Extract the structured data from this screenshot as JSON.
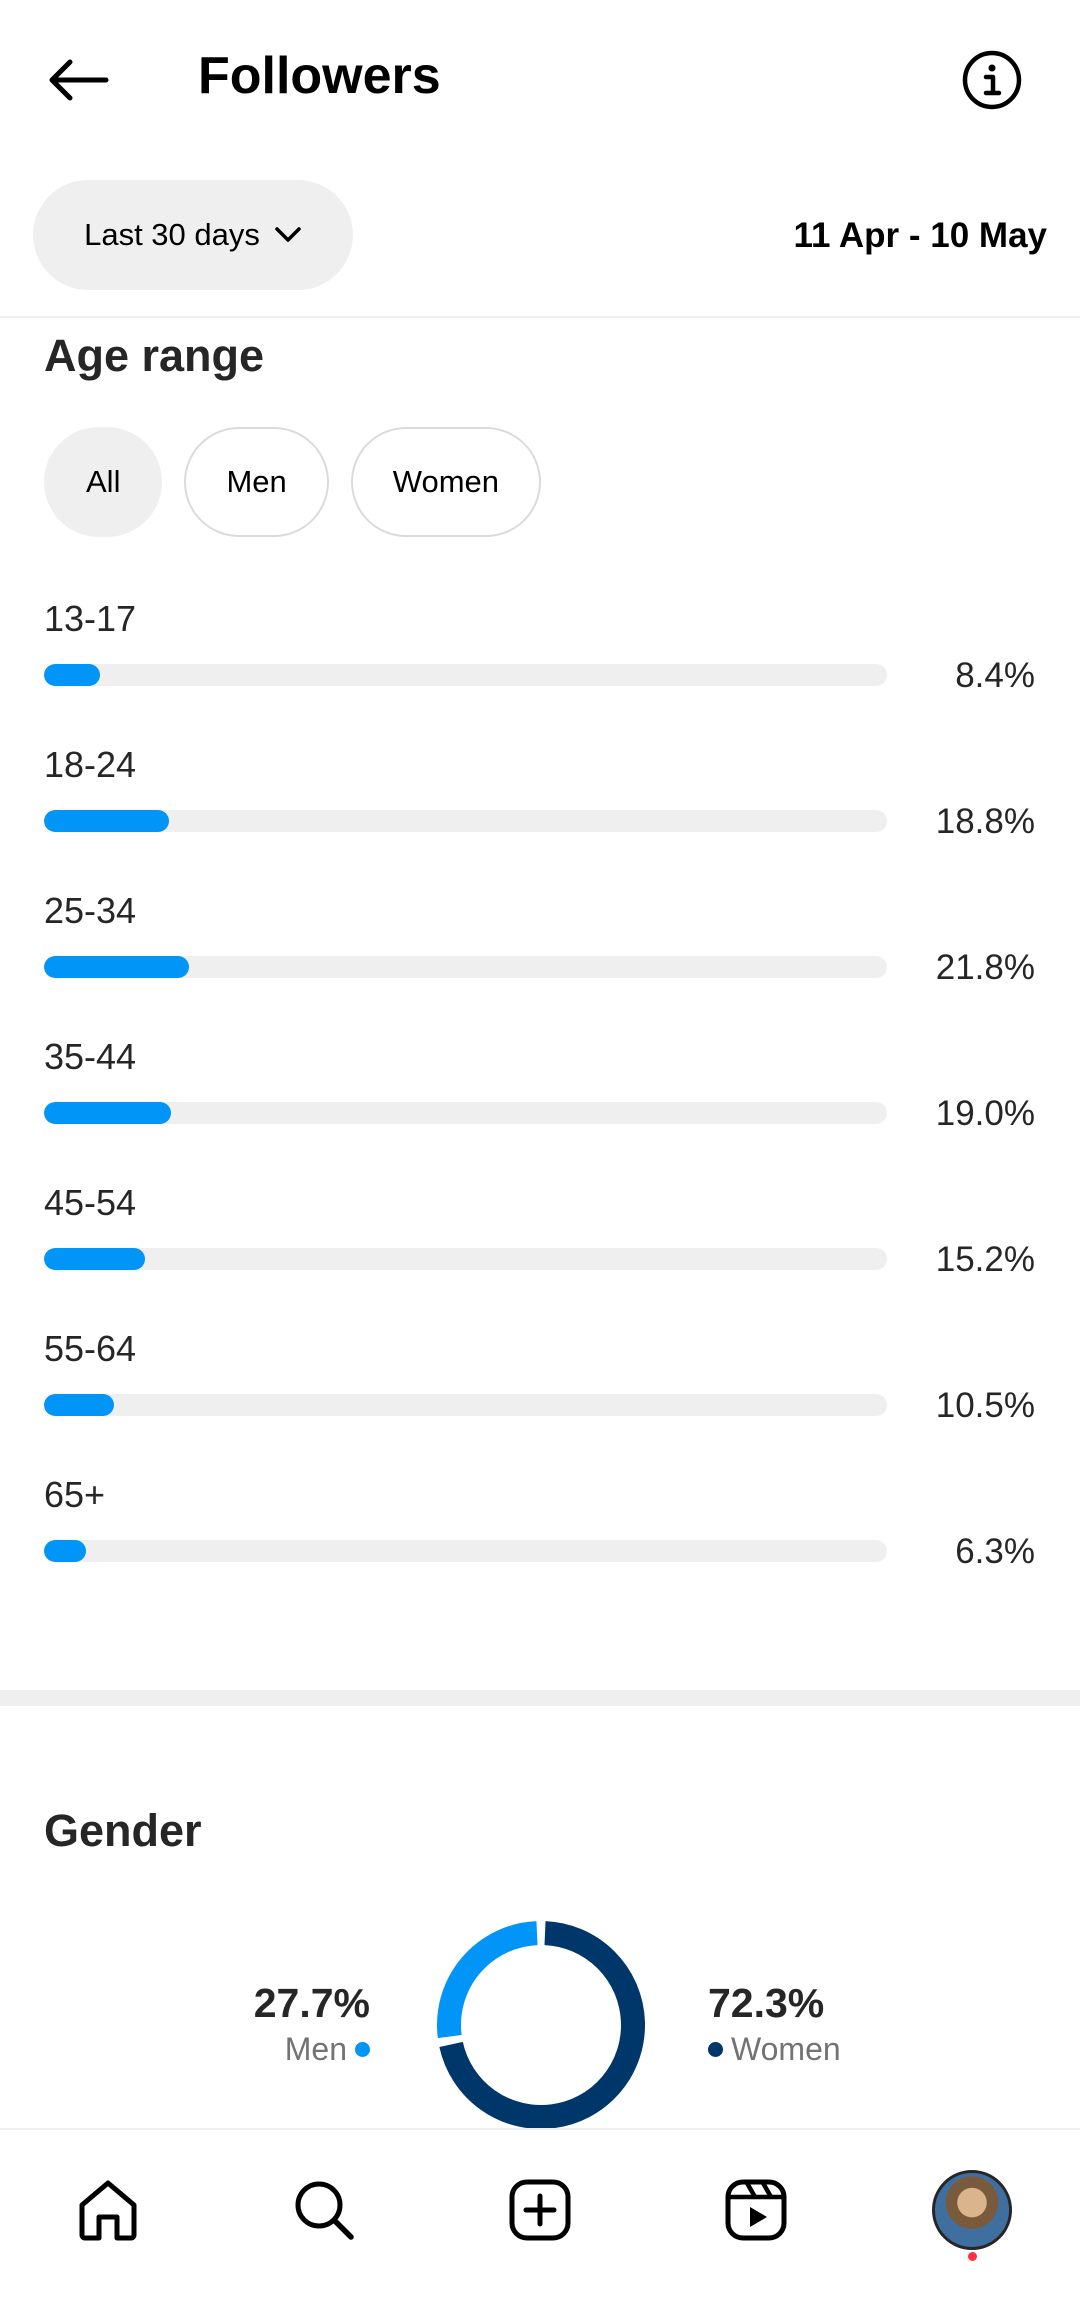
{
  "header": {
    "title": "Followers"
  },
  "filters": {
    "period_label": "Last 30 days",
    "date_range": "11 Apr - 10 May"
  },
  "age_range": {
    "title": "Age range",
    "chips": [
      {
        "label": "All",
        "active": true
      },
      {
        "label": "Men",
        "active": false
      },
      {
        "label": "Women",
        "active": false
      }
    ],
    "rows": [
      {
        "label": "13-17",
        "value": "8.4%",
        "percent": 8.4
      },
      {
        "label": "18-24",
        "value": "18.8%",
        "percent": 18.8
      },
      {
        "label": "25-34",
        "value": "21.8%",
        "percent": 21.8
      },
      {
        "label": "35-44",
        "value": "19.0%",
        "percent": 19.0
      },
      {
        "label": "45-54",
        "value": "15.2%",
        "percent": 15.2
      },
      {
        "label": "55-64",
        "value": "10.5%",
        "percent": 10.5
      },
      {
        "label": "65+",
        "value": "6.3%",
        "percent": 6.3
      }
    ]
  },
  "gender": {
    "title": "Gender",
    "men": {
      "value": "27.7%",
      "label": "Men",
      "percent": 27.7,
      "color": "#0095f6"
    },
    "women": {
      "value": "72.3%",
      "label": "Women",
      "percent": 72.3,
      "color": "#00376b"
    }
  },
  "colors": {
    "accent": "#0095f6",
    "track": "#efefef",
    "dark_blue": "#00376b"
  },
  "nav": {
    "items": [
      "home-icon",
      "search-icon",
      "create-icon",
      "reels-icon",
      "profile-avatar"
    ]
  }
}
